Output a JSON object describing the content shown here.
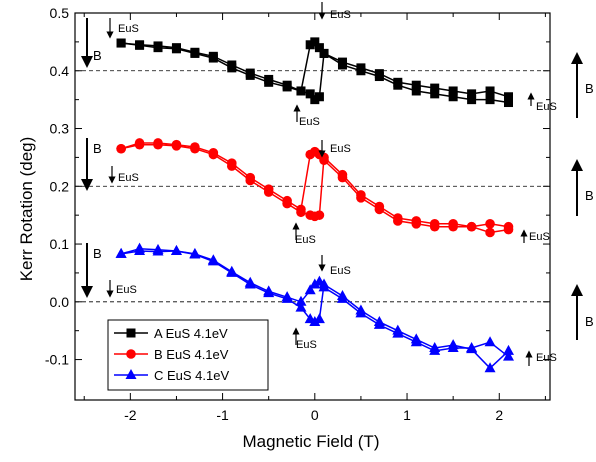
{
  "chart_data": {
    "type": "line",
    "xlabel": "Magnetic Field (T)",
    "ylabel": "Kerr Rotation (deg)",
    "xlim": [
      -2.6,
      2.55
    ],
    "ylim": [
      -0.17,
      0.5
    ],
    "xticks": [
      -2,
      -1,
      0,
      1,
      2
    ],
    "yticks": [
      -0.1,
      0.0,
      0.1,
      0.2,
      0.3,
      0.4,
      0.5
    ],
    "xtick_labels": [
      "-2",
      "-1",
      "0",
      "1",
      "2"
    ],
    "ytick_labels": [
      "-0.1",
      "0.0",
      "0.1",
      "0.2",
      "0.3",
      "0.4",
      "0.5"
    ],
    "reference_lines": [
      0.4,
      0.2,
      0.0
    ],
    "legend_position": "bottom-left",
    "series": [
      {
        "name": "A EuS 4.1eV",
        "color": "#000000",
        "marker": "square",
        "branch1": {
          "x": [
            -2.1,
            -1.9,
            -1.7,
            -1.5,
            -1.3,
            -1.1,
            -0.9,
            -0.7,
            -0.5,
            -0.3,
            -0.15,
            -0.05,
            0.0,
            0.05,
            0.1,
            0.3,
            0.5,
            0.7,
            0.9,
            1.1,
            1.3,
            1.5,
            1.7,
            1.9,
            2.1
          ],
          "y": [
            0.448,
            0.445,
            0.443,
            0.44,
            0.432,
            0.425,
            0.41,
            0.396,
            0.385,
            0.375,
            0.365,
            0.36,
            0.35,
            0.355,
            0.43,
            0.415,
            0.405,
            0.395,
            0.38,
            0.375,
            0.37,
            0.365,
            0.36,
            0.365,
            0.355
          ]
        },
        "branch2": {
          "x": [
            -2.1,
            -1.9,
            -1.7,
            -1.5,
            -1.3,
            -1.1,
            -0.9,
            -0.7,
            -0.5,
            -0.3,
            -0.15,
            -0.05,
            0.0,
            0.05,
            0.1,
            0.3,
            0.5,
            0.7,
            0.9,
            1.1,
            1.3,
            1.5,
            1.7,
            1.9,
            2.1
          ],
          "y": [
            0.448,
            0.444,
            0.44,
            0.438,
            0.43,
            0.422,
            0.405,
            0.392,
            0.38,
            0.372,
            0.365,
            0.445,
            0.45,
            0.44,
            0.43,
            0.41,
            0.4,
            0.39,
            0.375,
            0.365,
            0.36,
            0.355,
            0.35,
            0.35,
            0.345
          ]
        }
      },
      {
        "name": "B EuS 4.1eV",
        "color": "#ff0000",
        "marker": "circle",
        "branch1": {
          "x": [
            -2.1,
            -1.9,
            -1.7,
            -1.5,
            -1.3,
            -1.1,
            -0.9,
            -0.7,
            -0.5,
            -0.3,
            -0.15,
            -0.05,
            0.0,
            0.05,
            0.1,
            0.3,
            0.5,
            0.7,
            0.9,
            1.1,
            1.3,
            1.5,
            1.7,
            1.9,
            2.1
          ],
          "y": [
            0.265,
            0.272,
            0.272,
            0.27,
            0.265,
            0.255,
            0.235,
            0.21,
            0.19,
            0.17,
            0.155,
            0.15,
            0.148,
            0.15,
            0.25,
            0.22,
            0.185,
            0.165,
            0.145,
            0.14,
            0.135,
            0.135,
            0.13,
            0.12,
            0.125
          ]
        },
        "branch2": {
          "x": [
            -2.1,
            -1.9,
            -1.7,
            -1.5,
            -1.3,
            -1.1,
            -0.9,
            -0.7,
            -0.5,
            -0.3,
            -0.15,
            -0.05,
            0.0,
            0.05,
            0.1,
            0.3,
            0.5,
            0.7,
            0.9,
            1.1,
            1.3,
            1.5,
            1.7,
            1.9,
            2.1
          ],
          "y": [
            0.265,
            0.275,
            0.275,
            0.272,
            0.268,
            0.258,
            0.24,
            0.215,
            0.195,
            0.175,
            0.16,
            0.255,
            0.26,
            0.255,
            0.245,
            0.215,
            0.18,
            0.16,
            0.14,
            0.135,
            0.13,
            0.13,
            0.13,
            0.135,
            0.13
          ]
        }
      },
      {
        "name": "C EuS 4.1eV",
        "color": "#0000ff",
        "marker": "triangle",
        "branch1": {
          "x": [
            -2.1,
            -1.9,
            -1.7,
            -1.5,
            -1.3,
            -1.1,
            -0.9,
            -0.7,
            -0.5,
            -0.3,
            -0.15,
            -0.05,
            0.0,
            0.05,
            0.1,
            0.3,
            0.5,
            0.7,
            0.9,
            1.1,
            1.3,
            1.5,
            1.7,
            1.9,
            2.1
          ],
          "y": [
            0.083,
            0.088,
            0.087,
            0.088,
            0.082,
            0.07,
            0.05,
            0.03,
            0.015,
            0.005,
            -0.01,
            -0.03,
            -0.035,
            -0.03,
            0.03,
            0.01,
            -0.015,
            -0.035,
            -0.05,
            -0.065,
            -0.08,
            -0.075,
            -0.082,
            -0.115,
            -0.085
          ]
        },
        "branch2": {
          "x": [
            -2.1,
            -1.9,
            -1.7,
            -1.5,
            -1.3,
            -1.1,
            -0.9,
            -0.7,
            -0.5,
            -0.3,
            -0.15,
            -0.05,
            0.0,
            0.05,
            0.1,
            0.3,
            0.5,
            0.7,
            0.9,
            1.1,
            1.3,
            1.5,
            1.7,
            1.9,
            2.1
          ],
          "y": [
            0.083,
            0.092,
            0.09,
            0.088,
            0.083,
            0.072,
            0.052,
            0.033,
            0.018,
            0.008,
            0.0,
            0.02,
            0.03,
            0.035,
            0.025,
            0.005,
            -0.02,
            -0.04,
            -0.055,
            -0.07,
            -0.085,
            -0.08,
            -0.08,
            -0.07,
            -0.095
          ]
        }
      }
    ],
    "annotations": {
      "big_arrow_label": "B",
      "small_arrow_label": "EuS"
    }
  }
}
